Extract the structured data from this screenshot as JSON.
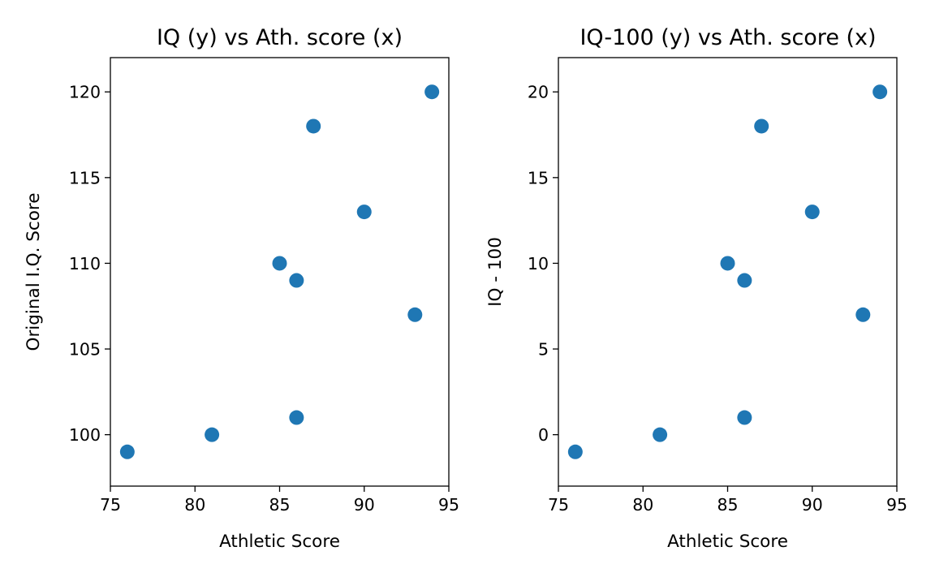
{
  "chart_data": [
    {
      "type": "scatter",
      "title": "IQ (y) vs Ath. score (x)",
      "xlabel": "Athletic Score",
      "ylabel": "Original I.Q. Score",
      "xlim": [
        75,
        95
      ],
      "ylim": [
        97,
        122
      ],
      "xticks": [
        "75",
        "80",
        "85",
        "90",
        "95"
      ],
      "yticks": [
        "100",
        "105",
        "110",
        "115",
        "120"
      ],
      "grid": false,
      "marker_color": "#1f77b4",
      "points": [
        {
          "x": 76,
          "y": 99
        },
        {
          "x": 81,
          "y": 100
        },
        {
          "x": 86,
          "y": 101
        },
        {
          "x": 85,
          "y": 110
        },
        {
          "x": 86,
          "y": 109
        },
        {
          "x": 90,
          "y": 113
        },
        {
          "x": 87,
          "y": 118
        },
        {
          "x": 93,
          "y": 107
        },
        {
          "x": 94,
          "y": 120
        }
      ]
    },
    {
      "type": "scatter",
      "title": "IQ-100 (y) vs Ath. score (x)",
      "xlabel": "Athletic Score",
      "ylabel": "IQ - 100",
      "xlim": [
        75,
        95
      ],
      "ylim": [
        -3,
        22
      ],
      "xticks": [
        "75",
        "80",
        "85",
        "90",
        "95"
      ],
      "yticks": [
        "0",
        "5",
        "10",
        "15",
        "20"
      ],
      "grid": false,
      "marker_color": "#1f77b4",
      "points": [
        {
          "x": 76,
          "y": -1
        },
        {
          "x": 81,
          "y": 0
        },
        {
          "x": 86,
          "y": 1
        },
        {
          "x": 85,
          "y": 10
        },
        {
          "x": 86,
          "y": 9
        },
        {
          "x": 90,
          "y": 13
        },
        {
          "x": 87,
          "y": 18
        },
        {
          "x": 93,
          "y": 7
        },
        {
          "x": 94,
          "y": 20
        }
      ]
    }
  ]
}
